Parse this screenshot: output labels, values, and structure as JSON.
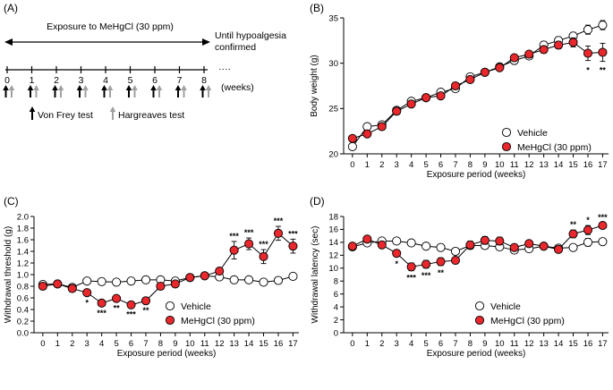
{
  "panels": {
    "A": {
      "label": "(A)"
    },
    "B": {
      "label": "(B)"
    },
    "C": {
      "label": "(C)"
    },
    "D": {
      "label": "(D)"
    }
  },
  "schedule": {
    "exposure_label": "Exposure to MeHgCl (30  ppm)",
    "until_line1": "Until hypoalgesia",
    "until_line2": "confirmed",
    "ellipsis": "····",
    "weeks": [
      "0",
      "1",
      "2",
      "3",
      "4",
      "5",
      "6",
      "7",
      "8"
    ],
    "weeks_unit": "(weeks)",
    "von_frey_label": "Von Frey test",
    "hargreaves_label": "Hargreaves test",
    "colors": {
      "von_frey": "#000000",
      "hargreaves": "#a0a0a0"
    }
  },
  "chart_data": [
    {
      "id": "B",
      "type": "line",
      "title": "",
      "xlabel": "Exposure period (weeks)",
      "ylabel": "Body weight (g)",
      "x": [
        0,
        1,
        2,
        3,
        4,
        5,
        6,
        7,
        8,
        9,
        10,
        11,
        12,
        13,
        14,
        15,
        16,
        17
      ],
      "xlim": [
        -0.6,
        17.4
      ],
      "ylim": [
        20,
        35
      ],
      "yticks": [
        20,
        25,
        30,
        35
      ],
      "grid": false,
      "legend": "bottom-right",
      "series": [
        {
          "name": "Vehicle",
          "marker": "open-circle",
          "color": "#000000",
          "values": [
            20.8,
            23.0,
            23.2,
            24.8,
            25.8,
            26.2,
            26.8,
            27.2,
            28.5,
            29.0,
            29.6,
            30.3,
            30.8,
            32.0,
            32.5,
            33.0,
            33.7,
            34.2
          ],
          "err": [
            0.3,
            0.3,
            0.3,
            0.3,
            0.3,
            0.3,
            0.3,
            0.3,
            0.3,
            0.3,
            0.3,
            0.3,
            0.3,
            0.4,
            0.4,
            0.4,
            0.5,
            0.5
          ]
        },
        {
          "name": "MeHgCl (30 ppm)",
          "marker": "filled-circle",
          "color": "#e8282d",
          "values": [
            21.7,
            22.2,
            23.0,
            24.7,
            25.5,
            26.2,
            26.4,
            27.5,
            28.2,
            29.0,
            29.5,
            30.6,
            31.0,
            31.5,
            32.0,
            32.3,
            31.1,
            31.2
          ],
          "err": [
            0.3,
            0.3,
            0.3,
            0.3,
            0.3,
            0.3,
            0.3,
            0.3,
            0.3,
            0.3,
            0.3,
            0.3,
            0.3,
            0.4,
            0.4,
            0.5,
            0.8,
            1.0
          ]
        }
      ],
      "annotations": [
        {
          "x": 16,
          "text": "*",
          "y": 29.5
        },
        {
          "x": 17,
          "text": "**",
          "y": 29.5
        }
      ]
    },
    {
      "id": "C",
      "type": "line",
      "title": "",
      "xlabel": "Exposure period (weeks)",
      "ylabel": "Withdrawal threshold (g)",
      "x": [
        0,
        1,
        2,
        3,
        4,
        5,
        6,
        7,
        8,
        9,
        10,
        11,
        12,
        13,
        14,
        15,
        16,
        17
      ],
      "xlim": [
        -0.6,
        17.4
      ],
      "ylim": [
        0.0,
        2.0
      ],
      "yticks": [
        0.0,
        0.2,
        0.4,
        0.6,
        0.8,
        1.0,
        1.2,
        1.4,
        1.6,
        1.8,
        2.0
      ],
      "grid": false,
      "legend": "bottom-center",
      "series": [
        {
          "name": "Vehicle",
          "marker": "open-circle",
          "color": "#000000",
          "values": [
            0.83,
            0.84,
            0.78,
            0.89,
            0.88,
            0.87,
            0.89,
            0.91,
            0.91,
            0.89,
            0.95,
            0.98,
            0.96,
            0.91,
            0.91,
            0.87,
            0.9,
            0.97
          ],
          "err": [
            0.04,
            0.03,
            0.03,
            0.03,
            0.04,
            0.03,
            0.03,
            0.03,
            0.03,
            0.03,
            0.03,
            0.03,
            0.03,
            0.03,
            0.03,
            0.03,
            0.03,
            0.03
          ]
        },
        {
          "name": "MeHgCl (30 ppm)",
          "marker": "filled-circle",
          "color": "#e8282d",
          "values": [
            0.8,
            0.84,
            0.76,
            0.69,
            0.51,
            0.59,
            0.48,
            0.55,
            0.8,
            0.84,
            0.95,
            0.98,
            1.06,
            1.42,
            1.53,
            1.31,
            1.71,
            1.49
          ],
          "err": [
            0.05,
            0.04,
            0.05,
            0.05,
            0.05,
            0.04,
            0.04,
            0.04,
            0.05,
            0.04,
            0.04,
            0.04,
            0.05,
            0.15,
            0.1,
            0.12,
            0.12,
            0.12
          ]
        }
      ],
      "annotations": [
        {
          "x": 3,
          "text": "*",
          "pos": "below"
        },
        {
          "x": 4,
          "text": "***",
          "pos": "below"
        },
        {
          "x": 5,
          "text": "**",
          "pos": "below"
        },
        {
          "x": 6,
          "text": "***",
          "pos": "below"
        },
        {
          "x": 7,
          "text": "**",
          "pos": "below"
        },
        {
          "x": 13,
          "text": "***",
          "pos": "above"
        },
        {
          "x": 14,
          "text": "***",
          "pos": "above"
        },
        {
          "x": 15,
          "text": "***",
          "pos": "above"
        },
        {
          "x": 16,
          "text": "***",
          "pos": "above"
        },
        {
          "x": 17,
          "text": "***",
          "pos": "above"
        }
      ]
    },
    {
      "id": "D",
      "type": "line",
      "title": "",
      "xlabel": "Exposure period (weeks)",
      "ylabel": "Withdrawal latency (sec)",
      "x": [
        0,
        1,
        2,
        3,
        4,
        5,
        6,
        7,
        8,
        9,
        10,
        11,
        12,
        13,
        14,
        15,
        16,
        17
      ],
      "xlim": [
        -0.6,
        17.4
      ],
      "ylim": [
        0,
        18
      ],
      "yticks": [
        0,
        2,
        4,
        6,
        8,
        10,
        12,
        14,
        16,
        18
      ],
      "grid": false,
      "legend": "bottom-center",
      "series": [
        {
          "name": "Vehicle",
          "marker": "open-circle",
          "color": "#000000",
          "values": [
            13.3,
            13.9,
            14.2,
            14.2,
            13.9,
            13.4,
            13.2,
            12.6,
            13.5,
            13.5,
            13.3,
            12.8,
            13.0,
            13.4,
            13.1,
            13.2,
            14.0,
            14.1
          ],
          "err": [
            0.4,
            0.4,
            0.4,
            0.4,
            0.4,
            0.4,
            0.5,
            0.5,
            0.5,
            0.5,
            0.5,
            0.4,
            0.4,
            0.4,
            0.4,
            0.4,
            0.6,
            0.5
          ]
        },
        {
          "name": "MeHgCl (30 ppm)",
          "marker": "filled-circle",
          "color": "#e8282d",
          "values": [
            13.4,
            14.5,
            13.6,
            12.3,
            10.2,
            10.6,
            11.0,
            11.2,
            13.6,
            14.3,
            14.2,
            13.2,
            13.8,
            13.4,
            12.9,
            15.3,
            15.9,
            16.6
          ],
          "err": [
            0.4,
            0.5,
            0.5,
            0.5,
            0.6,
            0.6,
            0.6,
            0.5,
            0.6,
            0.6,
            0.6,
            0.5,
            0.5,
            0.5,
            0.5,
            0.6,
            0.7,
            0.4
          ]
        }
      ],
      "annotations": [
        {
          "x": 3,
          "text": "*",
          "pos": "below"
        },
        {
          "x": 4,
          "text": "***",
          "pos": "below"
        },
        {
          "x": 5,
          "text": "***",
          "pos": "below"
        },
        {
          "x": 6,
          "text": "**",
          "pos": "below"
        },
        {
          "x": 15,
          "text": "**",
          "pos": "above"
        },
        {
          "x": 16,
          "text": "*",
          "pos": "above"
        },
        {
          "x": 17,
          "text": "***",
          "pos": "above"
        }
      ]
    }
  ]
}
